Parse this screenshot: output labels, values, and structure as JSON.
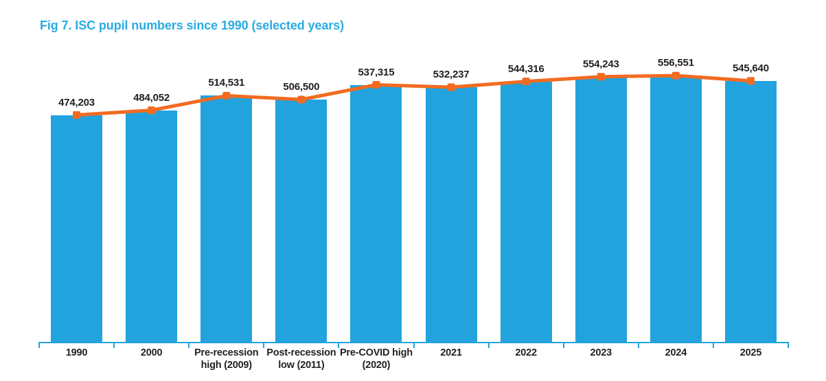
{
  "title": "Fig 7. ISC pupil numbers since 1990 (selected years)",
  "styles": {
    "bar_color": "#22A3DE",
    "axis_color": "#22A3DE",
    "line_color": "#F26B21",
    "marker_color": "#F26B21",
    "title_color": "#29ABE2",
    "label_color": "#231F20"
  },
  "chart_data": {
    "type": "bar",
    "overlay": "line-with-square-markers",
    "title": "Fig 7. ISC pupil numbers since 1990 (selected years)",
    "categories": [
      "1990",
      "2000",
      "Pre-recession high (2009)",
      "Post-recession low (2011)",
      "Pre-COVID high (2020)",
      "2021",
      "2022",
      "2023",
      "2024",
      "2025"
    ],
    "category_label_lines": [
      [
        "1990"
      ],
      [
        "2000"
      ],
      [
        "Pre-recession",
        "high (2009)"
      ],
      [
        "Post-recession",
        "low (2011)"
      ],
      [
        "Pre-COVID high",
        "(2020)"
      ],
      [
        "2021"
      ],
      [
        "2022"
      ],
      [
        "2023"
      ],
      [
        "2024"
      ],
      [
        "2025"
      ]
    ],
    "values": [
      474203,
      484052,
      514531,
      506500,
      537315,
      532237,
      544316,
      554243,
      556551,
      545640
    ],
    "value_labels": [
      "474,203",
      "484,052",
      "514,531",
      "506,500",
      "537,315",
      "532,237",
      "544,316",
      "554,243",
      "556,551",
      "545,640"
    ],
    "xlabel": "",
    "ylabel": "",
    "ylim": [
      0,
      560000
    ],
    "grid": false,
    "legend": null,
    "y_axis_visible": false,
    "data_labels_visible": true
  }
}
